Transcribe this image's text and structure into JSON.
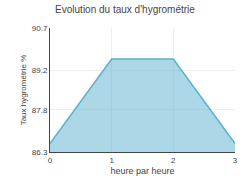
{
  "chart_data": {
    "type": "area",
    "title": "Evolution du taux d'hygrométrie",
    "xlabel": "heure par heure",
    "ylabel": "Taux hygrométrie %",
    "x": [
      0,
      1,
      2,
      3
    ],
    "values": [
      86.6,
      89.6,
      89.6,
      86.6
    ],
    "color": "#5ab0d0",
    "xlim": [
      0,
      3
    ],
    "xticks": [
      0,
      1,
      2,
      3
    ],
    "ylim": [
      86.3,
      90.7
    ],
    "yticks": [
      86.3,
      87.8,
      89.2,
      90.7
    ],
    "grid": true
  }
}
